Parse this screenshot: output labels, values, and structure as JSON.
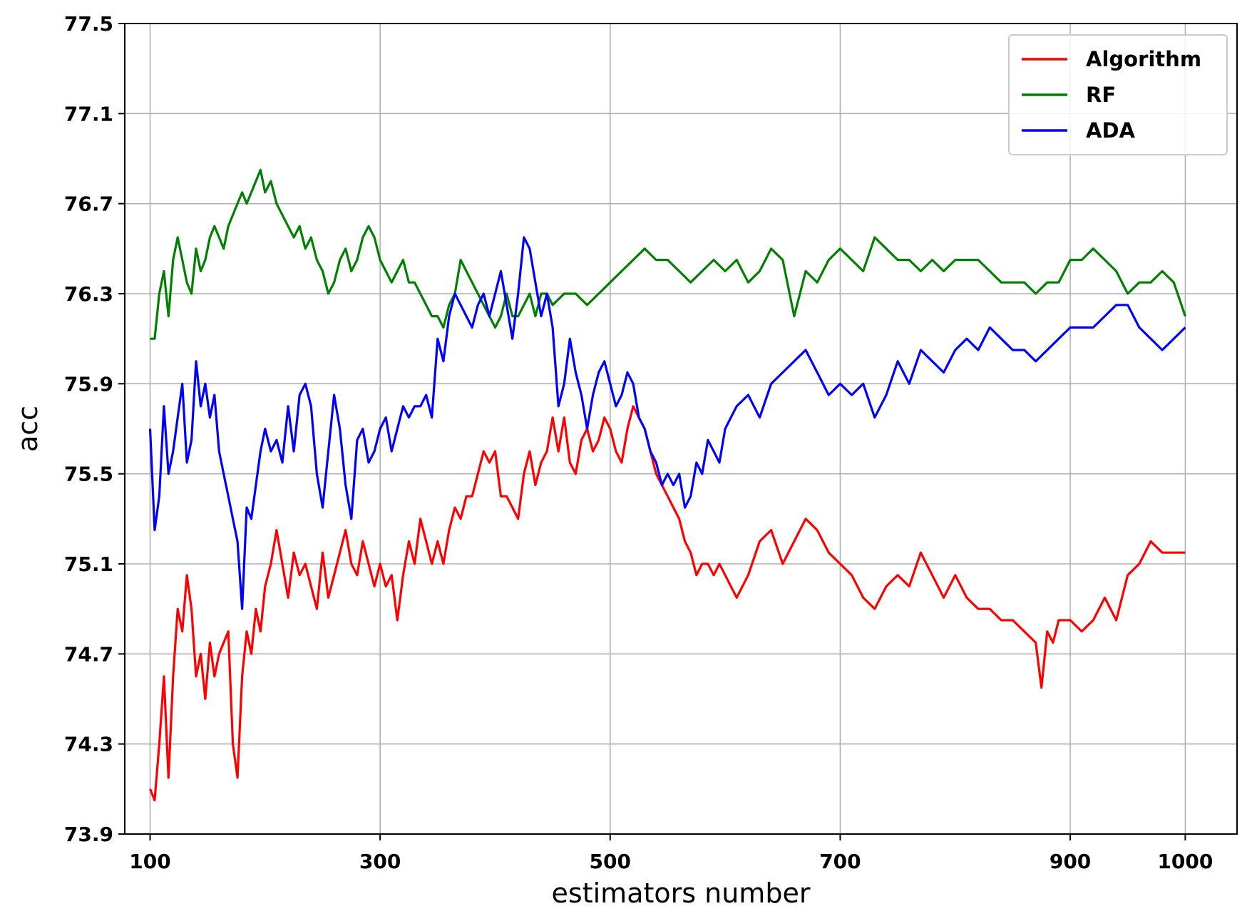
{
  "chart_data": {
    "type": "line",
    "title": "",
    "xlabel": "estimators number",
    "ylabel": "acc",
    "xlim": [
      78,
      1045
    ],
    "ylim": [
      73.9,
      77.5
    ],
    "xticks": [
      100,
      300,
      500,
      700,
      900,
      1000
    ],
    "yticks": [
      73.9,
      74.3,
      74.7,
      75.1,
      75.5,
      75.9,
      76.3,
      76.7,
      77.1,
      77.5
    ],
    "grid": true,
    "legend": "top-right",
    "series": [
      {
        "name": "Algorithm",
        "color": "#ff0000",
        "x": [
          100,
          104,
          108,
          112,
          116,
          120,
          124,
          128,
          132,
          136,
          140,
          144,
          148,
          152,
          156,
          160,
          164,
          168,
          172,
          176,
          180,
          184,
          188,
          192,
          196,
          200,
          205,
          210,
          215,
          220,
          225,
          230,
          235,
          240,
          245,
          250,
          255,
          260,
          265,
          270,
          275,
          280,
          285,
          290,
          295,
          300,
          305,
          310,
          315,
          320,
          325,
          330,
          335,
          340,
          345,
          350,
          355,
          360,
          365,
          370,
          375,
          380,
          385,
          390,
          395,
          400,
          405,
          410,
          415,
          420,
          425,
          430,
          435,
          440,
          445,
          450,
          455,
          460,
          465,
          470,
          475,
          480,
          485,
          490,
          495,
          500,
          505,
          510,
          515,
          520,
          525,
          530,
          535,
          540,
          545,
          550,
          555,
          560,
          565,
          570,
          575,
          580,
          585,
          590,
          595,
          600,
          610,
          620,
          630,
          640,
          650,
          660,
          670,
          680,
          690,
          700,
          710,
          720,
          730,
          740,
          750,
          760,
          770,
          780,
          790,
          800,
          810,
          820,
          830,
          840,
          850,
          860,
          870,
          875,
          880,
          885,
          890,
          900,
          910,
          920,
          930,
          940,
          950,
          960,
          970,
          980,
          990,
          1000
        ],
        "y": [
          74.1,
          74.05,
          74.3,
          74.6,
          74.15,
          74.6,
          74.9,
          74.8,
          75.05,
          74.9,
          74.6,
          74.7,
          74.5,
          74.75,
          74.6,
          74.7,
          74.75,
          74.8,
          74.3,
          74.15,
          74.6,
          74.8,
          74.7,
          74.9,
          74.8,
          75.0,
          75.1,
          75.25,
          75.1,
          74.95,
          75.15,
          75.05,
          75.1,
          75.0,
          74.9,
          75.15,
          74.95,
          75.05,
          75.15,
          75.25,
          75.1,
          75.05,
          75.2,
          75.1,
          75.0,
          75.1,
          75.0,
          75.05,
          74.85,
          75.05,
          75.2,
          75.1,
          75.3,
          75.2,
          75.1,
          75.2,
          75.1,
          75.25,
          75.35,
          75.3,
          75.4,
          75.4,
          75.5,
          75.6,
          75.55,
          75.6,
          75.4,
          75.4,
          75.35,
          75.3,
          75.5,
          75.6,
          75.45,
          75.55,
          75.6,
          75.75,
          75.6,
          75.75,
          75.55,
          75.5,
          75.65,
          75.7,
          75.6,
          75.65,
          75.75,
          75.7,
          75.6,
          75.55,
          75.7,
          75.8,
          75.75,
          75.7,
          75.6,
          75.5,
          75.45,
          75.4,
          75.35,
          75.3,
          75.2,
          75.15,
          75.05,
          75.1,
          75.1,
          75.05,
          75.1,
          75.05,
          74.95,
          75.05,
          75.2,
          75.25,
          75.1,
          75.2,
          75.3,
          75.25,
          75.15,
          75.1,
          75.05,
          74.95,
          74.9,
          75.0,
          75.05,
          75.0,
          75.15,
          75.05,
          74.95,
          75.05,
          74.95,
          74.9,
          74.9,
          74.85,
          74.85,
          74.8,
          74.75,
          74.55,
          74.8,
          74.75,
          74.85,
          74.85,
          74.8,
          74.85,
          74.95,
          74.85,
          75.05,
          75.1,
          75.2,
          75.15,
          75.15,
          75.15
        ]
      },
      {
        "name": "RF",
        "color": "#008000",
        "x": [
          100,
          104,
          108,
          112,
          116,
          120,
          124,
          128,
          132,
          136,
          140,
          144,
          148,
          152,
          156,
          160,
          164,
          168,
          172,
          176,
          180,
          184,
          188,
          192,
          196,
          200,
          205,
          210,
          215,
          220,
          225,
          230,
          235,
          240,
          245,
          250,
          255,
          260,
          265,
          270,
          275,
          280,
          285,
          290,
          295,
          300,
          305,
          310,
          315,
          320,
          325,
          330,
          335,
          340,
          345,
          350,
          355,
          360,
          365,
          370,
          375,
          380,
          385,
          390,
          395,
          400,
          405,
          410,
          415,
          420,
          425,
          430,
          435,
          440,
          445,
          450,
          460,
          470,
          480,
          490,
          500,
          510,
          520,
          530,
          540,
          550,
          560,
          570,
          580,
          590,
          600,
          610,
          620,
          630,
          640,
          650,
          660,
          670,
          680,
          690,
          700,
          710,
          720,
          730,
          740,
          750,
          760,
          770,
          780,
          790,
          800,
          810,
          820,
          830,
          840,
          850,
          860,
          870,
          880,
          890,
          900,
          910,
          920,
          930,
          940,
          950,
          960,
          970,
          980,
          990,
          1000
        ],
        "y": [
          76.1,
          76.1,
          76.3,
          76.4,
          76.2,
          76.45,
          76.55,
          76.45,
          76.35,
          76.3,
          76.5,
          76.4,
          76.45,
          76.55,
          76.6,
          76.55,
          76.5,
          76.6,
          76.65,
          76.7,
          76.75,
          76.7,
          76.75,
          76.8,
          76.85,
          76.75,
          76.8,
          76.7,
          76.65,
          76.6,
          76.55,
          76.6,
          76.5,
          76.55,
          76.45,
          76.4,
          76.3,
          76.35,
          76.45,
          76.5,
          76.4,
          76.45,
          76.55,
          76.6,
          76.55,
          76.45,
          76.4,
          76.35,
          76.4,
          76.45,
          76.35,
          76.35,
          76.3,
          76.25,
          76.2,
          76.2,
          76.15,
          76.25,
          76.3,
          76.45,
          76.4,
          76.35,
          76.3,
          76.25,
          76.2,
          76.15,
          76.2,
          76.3,
          76.2,
          76.2,
          76.25,
          76.3,
          76.2,
          76.3,
          76.3,
          76.25,
          76.3,
          76.3,
          76.25,
          76.3,
          76.35,
          76.4,
          76.45,
          76.5,
          76.45,
          76.45,
          76.4,
          76.35,
          76.4,
          76.45,
          76.4,
          76.45,
          76.35,
          76.4,
          76.5,
          76.45,
          76.2,
          76.4,
          76.35,
          76.45,
          76.5,
          76.45,
          76.4,
          76.55,
          76.5,
          76.45,
          76.45,
          76.4,
          76.45,
          76.4,
          76.45,
          76.45,
          76.45,
          76.4,
          76.35,
          76.35,
          76.35,
          76.3,
          76.35,
          76.35,
          76.45,
          76.45,
          76.5,
          76.45,
          76.4,
          76.3,
          76.35,
          76.35,
          76.4,
          76.35,
          76.2
        ]
      },
      {
        "name": "ADA",
        "color": "#0000ff",
        "x": [
          100,
          104,
          108,
          112,
          116,
          120,
          124,
          128,
          132,
          136,
          140,
          144,
          148,
          152,
          156,
          160,
          164,
          168,
          172,
          176,
          180,
          184,
          188,
          192,
          196,
          200,
          205,
          210,
          215,
          220,
          225,
          230,
          235,
          240,
          245,
          250,
          255,
          260,
          265,
          270,
          275,
          280,
          285,
          290,
          295,
          300,
          305,
          310,
          315,
          320,
          325,
          330,
          335,
          340,
          345,
          350,
          355,
          360,
          365,
          370,
          375,
          380,
          385,
          390,
          395,
          400,
          405,
          410,
          415,
          420,
          425,
          430,
          435,
          440,
          445,
          450,
          455,
          460,
          465,
          470,
          475,
          480,
          485,
          490,
          495,
          500,
          505,
          510,
          515,
          520,
          525,
          530,
          535,
          540,
          545,
          550,
          555,
          560,
          565,
          570,
          575,
          580,
          585,
          590,
          595,
          600,
          610,
          620,
          630,
          640,
          650,
          660,
          670,
          680,
          690,
          700,
          710,
          720,
          730,
          740,
          750,
          760,
          770,
          780,
          790,
          800,
          810,
          820,
          830,
          840,
          850,
          860,
          870,
          880,
          890,
          900,
          910,
          920,
          930,
          940,
          950,
          960,
          970,
          980,
          990,
          1000
        ],
        "y": [
          75.7,
          75.25,
          75.4,
          75.8,
          75.5,
          75.6,
          75.75,
          75.9,
          75.55,
          75.65,
          76.0,
          75.8,
          75.9,
          75.75,
          75.85,
          75.6,
          75.5,
          75.4,
          75.3,
          75.2,
          74.9,
          75.35,
          75.3,
          75.45,
          75.6,
          75.7,
          75.6,
          75.65,
          75.55,
          75.8,
          75.6,
          75.85,
          75.9,
          75.8,
          75.5,
          75.35,
          75.6,
          75.85,
          75.7,
          75.45,
          75.3,
          75.65,
          75.7,
          75.55,
          75.6,
          75.7,
          75.75,
          75.6,
          75.7,
          75.8,
          75.75,
          75.8,
          75.8,
          75.85,
          75.75,
          76.1,
          76.0,
          76.2,
          76.3,
          76.25,
          76.2,
          76.15,
          76.25,
          76.3,
          76.2,
          76.3,
          76.4,
          76.25,
          76.1,
          76.3,
          76.55,
          76.5,
          76.35,
          76.2,
          76.3,
          76.15,
          75.8,
          75.9,
          76.1,
          75.95,
          75.85,
          75.7,
          75.85,
          75.95,
          76.0,
          75.9,
          75.8,
          75.85,
          75.95,
          75.9,
          75.75,
          75.7,
          75.6,
          75.55,
          75.45,
          75.5,
          75.45,
          75.5,
          75.35,
          75.4,
          75.55,
          75.5,
          75.65,
          75.6,
          75.55,
          75.7,
          75.8,
          75.85,
          75.75,
          75.9,
          75.95,
          76.0,
          76.05,
          75.95,
          75.85,
          75.9,
          75.85,
          75.9,
          75.75,
          75.85,
          76.0,
          75.9,
          76.05,
          76.0,
          75.95,
          76.05,
          76.1,
          76.05,
          76.15,
          76.1,
          76.05,
          76.05,
          76.0,
          76.05,
          76.1,
          76.15,
          76.15,
          76.15,
          76.2,
          76.25,
          76.25,
          76.15,
          76.1,
          76.05,
          76.1,
          76.15
        ]
      }
    ]
  }
}
